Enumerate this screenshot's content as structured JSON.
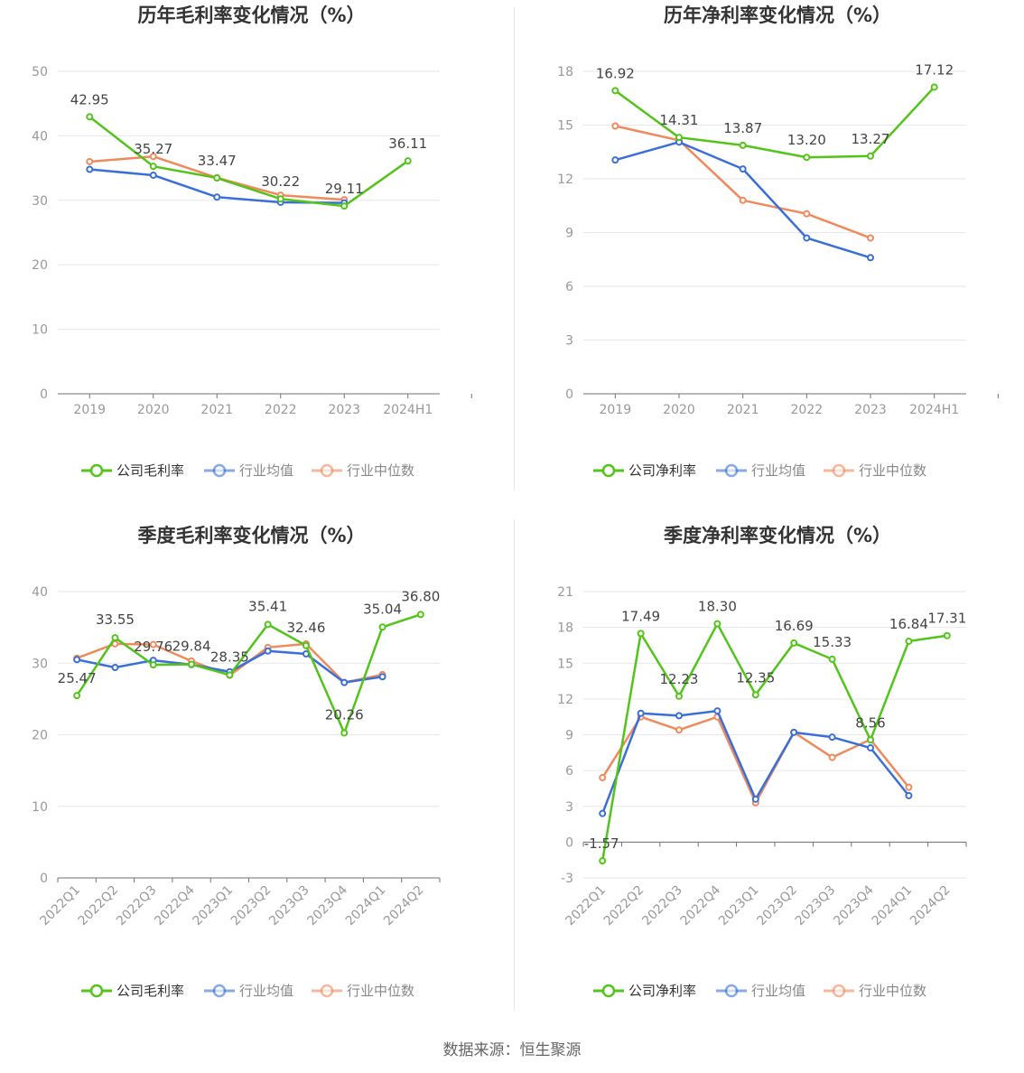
{
  "colors": {
    "company": "#52c41a",
    "industry_avg": "#3a6fd8",
    "industry_median": "#f08a5d"
  },
  "legend_labels_gross": [
    "公司毛利率",
    "行业均值",
    "行业中位数"
  ],
  "legend_labels_net": [
    "公司净利率",
    "行业均值",
    "行业中位数"
  ],
  "source_text": "数据来源：恒生聚源",
  "chart_data": [
    {
      "type": "line",
      "title": "历年毛利率变化情况（%）",
      "categories": [
        "2019",
        "2020",
        "2021",
        "2022",
        "2023",
        "2024H1"
      ],
      "ylim": [
        0,
        50
      ],
      "yticks": [
        0,
        10,
        20,
        30,
        40,
        50
      ],
      "series": [
        {
          "name": "公司毛利率",
          "values": [
            42.95,
            35.27,
            33.47,
            30.22,
            29.11,
            36.11
          ]
        },
        {
          "name": "行业均值",
          "values": [
            34.8,
            33.9,
            30.5,
            29.7,
            29.6,
            null
          ]
        },
        {
          "name": "行业中位数",
          "values": [
            36.0,
            36.8,
            33.5,
            30.8,
            30.1,
            null
          ]
        }
      ],
      "data_labels": [
        "42.95",
        "35.27",
        "33.47",
        "30.22",
        "29.11",
        "36.11"
      ],
      "grid": true,
      "legend": "bottom"
    },
    {
      "type": "line",
      "title": "历年净利率变化情况（%）",
      "categories": [
        "2019",
        "2020",
        "2021",
        "2022",
        "2023",
        "2024H1"
      ],
      "ylim": [
        0,
        18
      ],
      "yticks": [
        0,
        3,
        6,
        9,
        12,
        15,
        18
      ],
      "series": [
        {
          "name": "公司净利率",
          "values": [
            16.92,
            14.31,
            13.87,
            13.2,
            13.27,
            17.12
          ]
        },
        {
          "name": "行业均值",
          "values": [
            13.05,
            14.05,
            12.55,
            8.7,
            7.6,
            null
          ]
        },
        {
          "name": "行业中位数",
          "values": [
            14.95,
            14.15,
            10.8,
            10.05,
            8.7,
            null
          ]
        }
      ],
      "data_labels": [
        "16.92",
        "14.31",
        "13.87",
        "13.20",
        "13.27",
        "17.12"
      ],
      "grid": true,
      "legend": "bottom"
    },
    {
      "type": "line",
      "title": "季度毛利率变化情况（%）",
      "categories": [
        "2022Q1",
        "2022Q2",
        "2022Q3",
        "2022Q4",
        "2023Q1",
        "2023Q2",
        "2023Q3",
        "2023Q4",
        "2024Q1",
        "2024Q2"
      ],
      "ylim": [
        0,
        40
      ],
      "yticks": [
        0,
        10,
        20,
        30,
        40
      ],
      "series": [
        {
          "name": "公司毛利率",
          "values": [
            25.47,
            33.55,
            29.76,
            29.84,
            28.35,
            35.41,
            32.46,
            20.26,
            35.04,
            36.8
          ]
        },
        {
          "name": "行业均值",
          "values": [
            30.5,
            29.4,
            30.4,
            29.8,
            28.8,
            31.7,
            31.3,
            27.3,
            28.1,
            null
          ]
        },
        {
          "name": "行业中位数",
          "values": [
            30.7,
            32.7,
            32.6,
            30.3,
            28.3,
            32.2,
            32.7,
            27.3,
            28.4,
            null
          ]
        }
      ],
      "data_labels": [
        "25.47",
        "33.55",
        "29.76",
        "29.84",
        "28.35",
        "35.41",
        "32.46",
        "20.26",
        "35.04",
        "36.80"
      ],
      "grid": true,
      "legend": "bottom"
    },
    {
      "type": "line",
      "title": "季度净利率变化情况（%）",
      "categories": [
        "2022Q1",
        "2022Q2",
        "2022Q3",
        "2022Q4",
        "2023Q1",
        "2023Q2",
        "2023Q3",
        "2023Q4",
        "2024Q1",
        "2024Q2"
      ],
      "ylim": [
        -3,
        21
      ],
      "yticks": [
        -3,
        0,
        3,
        6,
        9,
        12,
        15,
        18,
        21
      ],
      "series": [
        {
          "name": "公司净利率",
          "values": [
            -1.57,
            17.49,
            12.23,
            18.3,
            12.35,
            16.69,
            15.33,
            8.56,
            16.84,
            17.31
          ]
        },
        {
          "name": "行业均值",
          "values": [
            2.4,
            10.8,
            10.6,
            11.0,
            3.6,
            9.2,
            8.8,
            7.9,
            3.9,
            null
          ]
        },
        {
          "name": "行业中位数",
          "values": [
            5.4,
            10.5,
            9.4,
            10.5,
            3.3,
            9.2,
            7.1,
            8.6,
            4.6,
            null
          ]
        }
      ],
      "data_labels": [
        "-1.57",
        "17.49",
        "12.23",
        "18.30",
        "12.35",
        "16.69",
        "15.33",
        "8.56",
        "16.84",
        "17.31"
      ],
      "grid": true,
      "legend": "bottom"
    }
  ]
}
